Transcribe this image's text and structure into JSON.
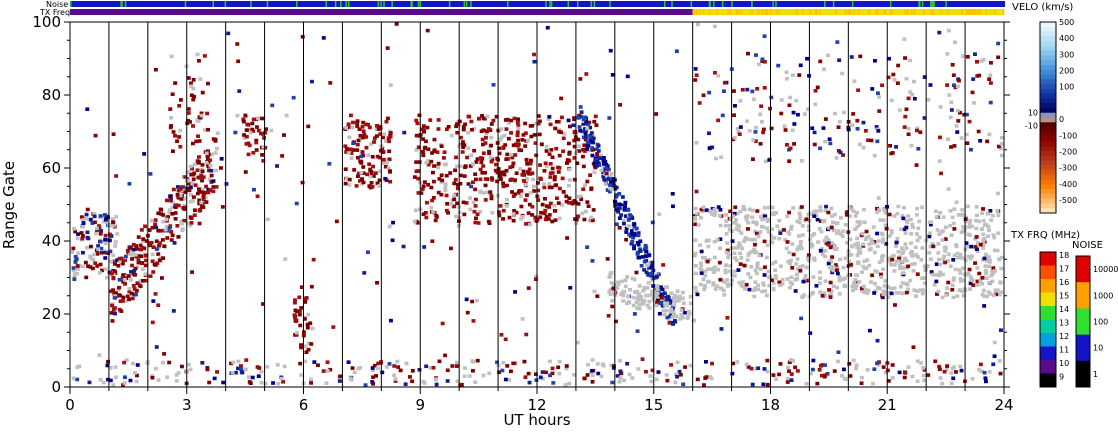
{
  "chart_data": {
    "type": "heatmap",
    "title": "",
    "xlabel": "UT hours",
    "ylabel": "Range Gate",
    "xlim": [
      0,
      24
    ],
    "ylim": [
      0,
      100
    ],
    "x_ticks": [
      0,
      3,
      6,
      9,
      12,
      15,
      18,
      21,
      24
    ],
    "y_ticks": [
      0,
      20,
      40,
      60,
      80,
      100
    ],
    "vertical_grid_hours": [
      1,
      2,
      3,
      4,
      5,
      6,
      7,
      8,
      9,
      10,
      11,
      12,
      13,
      14,
      15,
      16,
      17,
      18,
      19,
      20,
      21,
      22,
      23
    ],
    "strip_labels": {
      "noise": "Noise",
      "txfreq": "TX Freq"
    },
    "tx_freq_mhz": [
      {
        "start_hour": 0,
        "end_hour": 16,
        "freq": 10
      },
      {
        "start_hour": 16,
        "end_hour": 24,
        "freq": 15
      }
    ],
    "noise_strip_note": "mostly level 10 (blue) with occasional level 100 (green) samples",
    "velocity_colorbar": {
      "title": "VELO (km/s)",
      "tick_labels": [
        "500",
        "400",
        "300",
        "200",
        "100",
        "10",
        "0",
        "-10",
        "-100",
        "-200",
        "-300",
        "-400",
        "-500"
      ],
      "range": [
        -500,
        500
      ]
    },
    "txfreq_colorbar": {
      "title": "TX FRQ (MHz)",
      "tick_labels": [
        "18",
        "17",
        "16",
        "15",
        "14",
        "13",
        "12",
        "11",
        "10",
        "9"
      ]
    },
    "noise_colorbar": {
      "title": "NOISE",
      "tick_labels": [
        "10000",
        "1000",
        "100",
        "10",
        "1"
      ]
    },
    "colors": {
      "ground_scatter": "#c0c0c0",
      "negative_velocity": "#8b0000",
      "positive_velocity": "#00008b",
      "axis": "#000000"
    },
    "scatter_regions": [
      {
        "name": "ground scatter band",
        "hour_start": 0,
        "hour_end": 1.2,
        "gate_low": 30,
        "gate_high": 48,
        "kind": "mixed"
      },
      {
        "name": "rising echo band",
        "hour_start": 1,
        "hour_end": 3.8,
        "gate_low": 18,
        "gate_high": 65,
        "kind": "negative"
      },
      {
        "name": "high-gate echoes",
        "hour_start": 2.5,
        "hour_end": 3.5,
        "gate_low": 65,
        "gate_high": 92,
        "kind": "negative"
      },
      {
        "name": "gate 70 patch",
        "hour_start": 4.4,
        "hour_end": 5,
        "gate_low": 62,
        "gate_high": 75,
        "kind": "negative"
      },
      {
        "name": "near-range spike",
        "hour_start": 5.7,
        "hour_end": 6.2,
        "gate_low": 10,
        "gate_high": 28,
        "kind": "negative"
      },
      {
        "name": "gate 65 patch",
        "hour_start": 7,
        "hour_end": 8.2,
        "gate_low": 55,
        "gate_high": 75,
        "kind": "negative"
      },
      {
        "name": "main patch",
        "hour_start": 8.8,
        "hour_end": 13.5,
        "gate_low": 45,
        "gate_high": 75,
        "kind": "negative"
      },
      {
        "name": "descending positive arc",
        "hour_start": 13,
        "hour_end": 15.5,
        "gate_low": 18,
        "gate_high": 75,
        "kind": "positive"
      },
      {
        "name": "mid-range ground scatter band",
        "hour_start": 16,
        "hour_end": 24,
        "gate_low": 25,
        "gate_high": 50,
        "kind": "ground"
      },
      {
        "name": "far-range echoes",
        "hour_start": 16,
        "hour_end": 24,
        "gate_low": 62,
        "gate_high": 92,
        "kind": "mixed"
      },
      {
        "name": "near-range echoes",
        "hour_start": 0,
        "hour_end": 24,
        "gate_low": 0,
        "gate_high": 8,
        "kind": "mixed"
      }
    ]
  }
}
